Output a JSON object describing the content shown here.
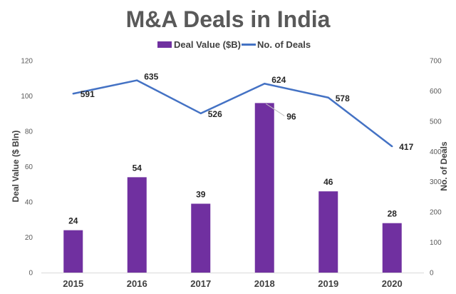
{
  "chart_data": {
    "type": "bar",
    "title": "M&A Deals in India",
    "categories": [
      "2015",
      "2016",
      "2017",
      "2018",
      "2019",
      "2020"
    ],
    "series": [
      {
        "name": "Deal Value ($B)",
        "type": "bar",
        "axis": "left",
        "color": "#7030A0",
        "values": [
          24,
          54,
          39,
          96,
          46,
          28
        ],
        "labels": [
          "24",
          "54",
          "39",
          "96",
          "46",
          "28"
        ]
      },
      {
        "name": "No. of Deals",
        "type": "line",
        "axis": "right",
        "color": "#4472C4",
        "values": [
          591,
          635,
          526,
          624,
          578,
          417
        ],
        "labels": [
          "591",
          "635",
          "526",
          "624",
          "578",
          "417"
        ]
      }
    ],
    "ylabel": "Deal Value ($ Bln)",
    "y2label": "No. of Deals",
    "ylim": [
      0,
      120
    ],
    "y2lim": [
      0,
      700
    ],
    "yticks": [
      "0",
      "20",
      "40",
      "60",
      "80",
      "100",
      "120"
    ],
    "y2ticks": [
      "0",
      "100",
      "200",
      "300",
      "400",
      "500",
      "600",
      "700"
    ],
    "grid": false,
    "legend": "top"
  }
}
